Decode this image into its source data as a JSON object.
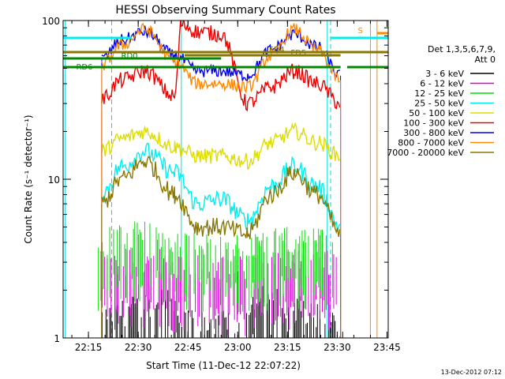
{
  "chart_data": {
    "type": "line",
    "title": "HESSI Observing Summary Count Rates",
    "xlabel": "Start Time (11-Dec-12 22:07:22)",
    "ylabel": "Count Rate (s⁻¹ detector⁻¹)",
    "y_scale": "log",
    "ylim": [
      1,
      100
    ],
    "xlim_minutes_after_22_07_22": [
      0,
      98
    ],
    "x_ticks": [
      "22:15",
      "22:30",
      "22:45",
      "23:00",
      "23:15",
      "23:30",
      "23:45"
    ],
    "y_ticks": [
      "1",
      "10",
      "100"
    ],
    "legend_title": "Det 1,3,5,6,7,9,",
    "legend_subtitle": "Att 0",
    "legend_position": "right",
    "series": [
      {
        "name": "3 - 6 keV",
        "color": "#000000",
        "x": [
          "22:18",
          "22:40",
          "22:42",
          "23:00",
          "23:05",
          "23:32"
        ],
        "y": [
          1.0,
          1.5,
          1.0,
          1.0,
          1.5,
          1.0
        ]
      },
      {
        "name": "6 - 12 keV",
        "color": "#dd00dd",
        "x": [
          "22:18",
          "22:24",
          "22:32",
          "22:40",
          "23:00",
          "23:16",
          "23:30"
        ],
        "y": [
          2.4,
          2.4,
          2.6,
          2.4,
          2.2,
          2.4,
          2.4
        ]
      },
      {
        "name": "12 - 25 keV",
        "color": "#00dd00",
        "x": [
          "22:18",
          "22:24",
          "22:32",
          "22:40",
          "23:00",
          "23:16",
          "23:30"
        ],
        "y": [
          3.2,
          3.5,
          3.8,
          3.4,
          3.0,
          3.4,
          3.2
        ]
      },
      {
        "name": "25 - 50 keV",
        "color": "#00eeee",
        "x": [
          "22:19",
          "22:25",
          "22:32",
          "22:41",
          "22:48",
          "22:55",
          "23:03",
          "23:10",
          "23:17",
          "23:24",
          "23:31"
        ],
        "y": [
          8,
          12,
          15,
          11,
          7,
          7.5,
          5.5,
          9,
          12,
          9,
          5
        ]
      },
      {
        "name": "50 - 100 keV",
        "color": "#dddd00",
        "x": [
          "22:19",
          "22:25",
          "22:32",
          "22:41",
          "22:48",
          "22:55",
          "23:03",
          "23:10",
          "23:17",
          "23:24",
          "23:31"
        ],
        "y": [
          15,
          18,
          20,
          16,
          14,
          14,
          13,
          17,
          20,
          17,
          14
        ]
      },
      {
        "name": "100 - 300 keV",
        "color": "#ee0000",
        "x": [
          "22:19",
          "22:25",
          "22:32",
          "22:41",
          "22:43",
          "22:48",
          "22:55",
          "23:03",
          "23:10",
          "23:17",
          "23:24",
          "23:31"
        ],
        "y": [
          32,
          42,
          48,
          33,
          95,
          85,
          82,
          30,
          38,
          48,
          40,
          30
        ]
      },
      {
        "name": "300 - 800 keV",
        "color": "#0000ee",
        "x": [
          "22:19",
          "22:25",
          "22:32",
          "22:41",
          "22:48",
          "22:55",
          "23:03",
          "23:10",
          "23:17",
          "23:24",
          "23:31"
        ],
        "y": [
          57,
          75,
          85,
          60,
          48,
          48,
          45,
          65,
          82,
          68,
          45
        ]
      },
      {
        "name": "800 - 7000 keV",
        "color": "#ff8800",
        "x": [
          "22:19",
          "22:25",
          "22:32",
          "22:41",
          "22:48",
          "22:55",
          "23:03",
          "23:10",
          "23:17",
          "23:24",
          "23:31"
        ],
        "y": [
          52,
          70,
          88,
          55,
          40,
          40,
          38,
          60,
          88,
          65,
          42
        ]
      },
      {
        "name": "7000 - 20000 keV",
        "color": "#887700",
        "x": [
          "22:19",
          "22:25",
          "22:32",
          "22:41",
          "22:48",
          "22:55",
          "23:03",
          "23:10",
          "23:17",
          "23:24",
          "23:31"
        ],
        "y": [
          7,
          10,
          13,
          8,
          5,
          5,
          4.5,
          8,
          11,
          8,
          4.5
        ]
      }
    ],
    "flag_bars": [
      {
        "label": "RD6",
        "color": "#008800"
      },
      {
        "label": "RD0",
        "color": "#008800"
      },
      {
        "label": "FD4",
        "color": "#887700"
      },
      {
        "label": "FD5",
        "color": "#887700"
      },
      {
        "label": "S",
        "color": "#ff8800"
      }
    ],
    "vertical_markers": [
      {
        "kind": "solid",
        "color": "#00dddd"
      },
      {
        "kind": "dashed",
        "color": "#00dddd"
      },
      {
        "kind": "solid",
        "color": "#ff8800"
      }
    ]
  },
  "footer": {
    "timestamp": "13-Dec-2012 07:12"
  }
}
